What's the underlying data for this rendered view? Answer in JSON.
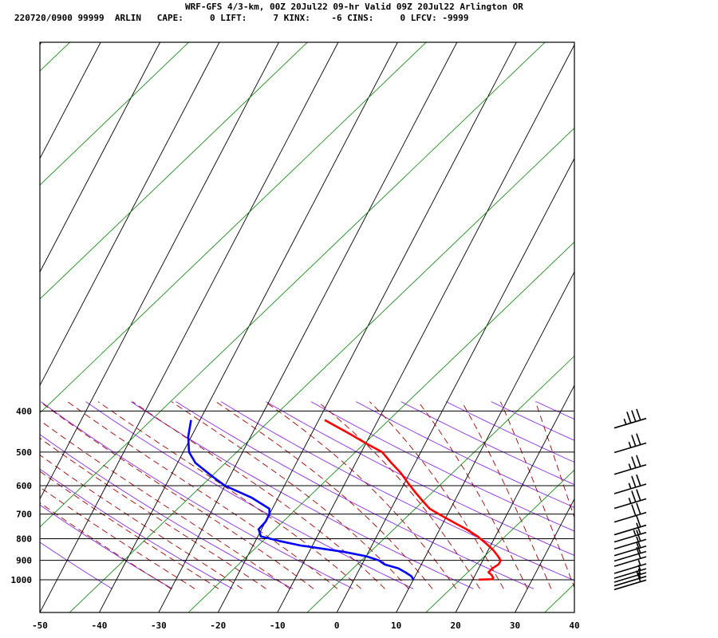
{
  "header": {
    "line1": "WRF-GFS 4/3-km, 00Z 20Jul22 09-hr Valid 09Z 20Jul22 Arlington OR",
    "line2": "220720/0900 99999  ARLIN   CAPE:     0 LIFT:     7 KINX:    -6 CINS:     0 LFCV: -9999"
  },
  "chart_data": {
    "type": "line",
    "title": "WRF-GFS 4/3-km, 00Z 20Jul22 09-hr Valid 09Z 20Jul22 Arlington OR",
    "xlabel": "",
    "ylabel": "",
    "xlim": [
      -50,
      40
    ],
    "x_ticks": [
      "-50",
      "-40",
      "-30",
      "-20",
      "-10",
      "0",
      "10",
      "20",
      "30",
      "40"
    ],
    "y_ticks": [
      "400",
      "500",
      "600",
      "700",
      "800",
      "900",
      "1000"
    ],
    "y_tick_values": [
      400,
      500,
      600,
      700,
      800,
      900,
      1000
    ],
    "series": [
      {
        "name": "temperature",
        "color": "#ff0000",
        "points": [
          {
            "p": 420,
            "t": -19
          },
          {
            "p": 450,
            "t": -14
          },
          {
            "p": 480,
            "t": -9.5
          },
          {
            "p": 500,
            "t": -6.5
          },
          {
            "p": 530,
            "t": -4
          },
          {
            "p": 560,
            "t": -1.5
          },
          {
            "p": 590,
            "t": 0.5
          },
          {
            "p": 620,
            "t": 2.5
          },
          {
            "p": 650,
            "t": 4.5
          },
          {
            "p": 680,
            "t": 6.5
          },
          {
            "p": 700,
            "t": 8.5
          },
          {
            "p": 730,
            "t": 11.5
          },
          {
            "p": 760,
            "t": 14.5
          },
          {
            "p": 790,
            "t": 17
          },
          {
            "p": 820,
            "t": 19
          },
          {
            "p": 850,
            "t": 20.8
          },
          {
            "p": 880,
            "t": 22.2
          },
          {
            "p": 900,
            "t": 23
          },
          {
            "p": 920,
            "t": 23
          },
          {
            "p": 940,
            "t": 22.3
          },
          {
            "p": 960,
            "t": 22
          },
          {
            "p": 975,
            "t": 22.8
          },
          {
            "p": 990,
            "t": 23.3
          },
          {
            "p": 997,
            "t": 23.2
          },
          {
            "p": 999,
            "t": 21
          }
        ]
      },
      {
        "name": "dewpoint",
        "color": "#0000ff",
        "points": [
          {
            "p": 420,
            "t": -41.5
          },
          {
            "p": 460,
            "t": -40.5
          },
          {
            "p": 500,
            "t": -39
          },
          {
            "p": 530,
            "t": -37
          },
          {
            "p": 570,
            "t": -33
          },
          {
            "p": 600,
            "t": -30
          },
          {
            "p": 640,
            "t": -24.5
          },
          {
            "p": 680,
            "t": -20.5
          },
          {
            "p": 700,
            "t": -20
          },
          {
            "p": 730,
            "t": -20
          },
          {
            "p": 760,
            "t": -20.5
          },
          {
            "p": 790,
            "t": -19.5
          },
          {
            "p": 810,
            "t": -16
          },
          {
            "p": 830,
            "t": -12
          },
          {
            "p": 860,
            "t": -4
          },
          {
            "p": 880,
            "t": 0
          },
          {
            "p": 900,
            "t": 2.5
          },
          {
            "p": 920,
            "t": 3.8
          },
          {
            "p": 940,
            "t": 6.5
          },
          {
            "p": 960,
            "t": 8
          },
          {
            "p": 980,
            "t": 9.3
          },
          {
            "p": 995,
            "t": 9.9
          },
          {
            "p": 1000,
            "t": 10
          }
        ]
      }
    ],
    "wind_levels": [
      {
        "p": 420,
        "flags": [
          1,
          1,
          1,
          0.5
        ]
      },
      {
        "p": 480,
        "flags": [
          1,
          1,
          0.5
        ]
      },
      {
        "p": 540,
        "flags": [
          1,
          1,
          0.5
        ]
      },
      {
        "p": 600,
        "flags": [
          1,
          1,
          0.5
        ]
      },
      {
        "p": 650,
        "flags": [
          1,
          1,
          0.5
        ]
      },
      {
        "p": 700,
        "flags": [
          1,
          1
        ]
      },
      {
        "p": 750,
        "flags": [
          1
        ]
      },
      {
        "p": 780,
        "flags": [
          1,
          0.5
        ]
      },
      {
        "p": 810,
        "flags": [
          1
        ]
      },
      {
        "p": 840,
        "flags": [
          1
        ]
      },
      {
        "p": 865,
        "flags": [
          1
        ]
      },
      {
        "p": 890,
        "flags": [
          1
        ]
      },
      {
        "p": 925,
        "flags": [
          0.5
        ]
      },
      {
        "p": 950,
        "flags": [
          0.5
        ]
      },
      {
        "p": 970,
        "flags": [
          0.5
        ]
      },
      {
        "p": 990,
        "flags": [
          0.5
        ]
      },
      {
        "p": 1010,
        "flags": [
          1
        ]
      }
    ]
  }
}
